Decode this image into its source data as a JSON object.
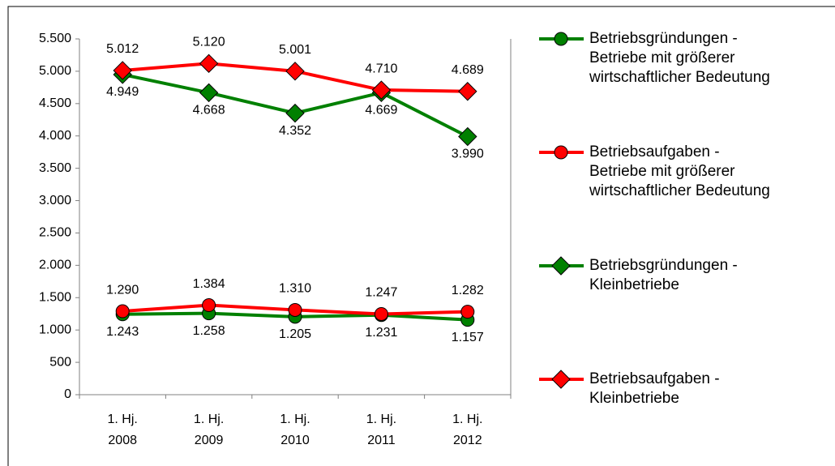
{
  "chart_data": {
    "type": "line",
    "categories": [
      [
        "1. Hj.",
        "2008"
      ],
      [
        "1. Hj.",
        "2009"
      ],
      [
        "1. Hj.",
        "2010"
      ],
      [
        "1. Hj.",
        "2011"
      ],
      [
        "1. Hj.",
        "2012"
      ]
    ],
    "series": [
      {
        "name": "Betriebsgründungen -\nBetriebe mit größerer\nwirtschaftlicher Bedeutung",
        "color": "#008000",
        "values": [
          4949,
          4668,
          4352,
          4669,
          3990
        ],
        "value_labels": [
          "4.949",
          "4.668",
          "4.352",
          "4.669",
          "3.990"
        ]
      },
      {
        "name": "Betriebsaufgaben -\nBetriebe mit größerer\nwirtschaftlicher Bedeutung",
        "color": "#ff0000",
        "values": [
          5012,
          5120,
          5001,
          4710,
          4689
        ],
        "value_labels": [
          "5.012",
          "5.120",
          "5.001",
          "4.710",
          "4.689"
        ]
      },
      {
        "name": "Betriebsgründungen -\nKleinbetriebe",
        "color": "#008000",
        "values": [
          1243,
          1258,
          1205,
          1231,
          1157
        ],
        "value_labels": [
          "1.243",
          "1.258",
          "1.205",
          "1.231",
          "1.157"
        ]
      },
      {
        "name": "Betriebsaufgaben -\nKleinbetriebe",
        "color": "#ff0000",
        "values": [
          1290,
          1384,
          1310,
          1247,
          1282
        ],
        "value_labels": [
          "1.290",
          "1.384",
          "1.310",
          "1.247",
          "1.282"
        ]
      }
    ],
    "ylim": [
      0,
      5500
    ],
    "yticks": [
      0,
      500,
      {
        "value": 1000,
        "label": "1.000"
      },
      {
        "value": 1500,
        "label": "1.500"
      },
      {
        "value": 2000,
        "label": "2.000"
      },
      {
        "value": 2500,
        "label": "2.500"
      },
      {
        "value": 3000,
        "label": "3.000"
      },
      {
        "value": 3500,
        "label": "3.500"
      },
      {
        "value": 4000,
        "label": "4.000"
      },
      {
        "value": 4500,
        "label": "4.500"
      },
      {
        "value": 5000,
        "label": "5.000"
      },
      {
        "value": 5500,
        "label": "5.500"
      }
    ],
    "legend": "right"
  }
}
